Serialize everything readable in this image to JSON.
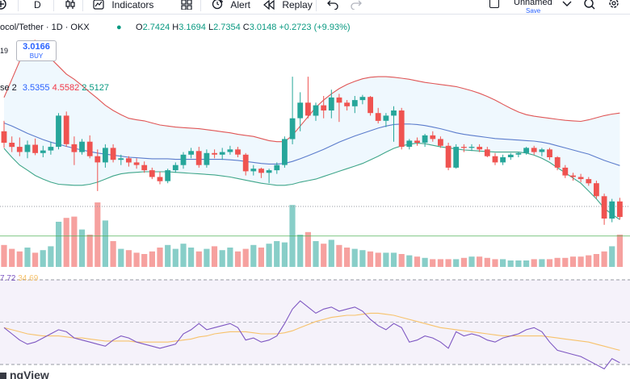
{
  "toolbar": {
    "interval": "D",
    "indicators_label": "Indicators",
    "alert_label": "Alert",
    "replay_label": "Replay",
    "layout_name": "Unnamed",
    "save_label": "Save"
  },
  "legend": {
    "symbol": "ocol/Tether · 1D · OKX",
    "ohlc": {
      "o_label": "O",
      "o": "2.7424",
      "h_label": "H",
      "h": "3.1694",
      "l_label": "L",
      "l": "2.7354",
      "c_label": "C",
      "c": "3.0148",
      "change": "+0.2723 (+9.93%)"
    },
    "left_cut": "19",
    "bb_label": "se 2",
    "bb_values": {
      "basis": "3.5355",
      "upper": "4.5582",
      "lower": "2.5127"
    },
    "buy_price": "3.0166",
    "buy_label": "BUY",
    "rsi_values": {
      "rsi": "7.72",
      "ma": "34.69"
    },
    "watermark": "ngView"
  },
  "colors": {
    "up": "#26a69a",
    "down": "#ef5350",
    "upper": "#e05656",
    "basis": "#5b7ccc",
    "lower": "#3fa68a",
    "rsi": "#7e57c2",
    "rsi_ma": "#f7c26b"
  },
  "chart_data": {
    "type": "candlestick",
    "symbol": "ocol/Tether",
    "timeframe": "1D",
    "exchange": "OKX",
    "candles": [
      [
        3.7,
        3.9,
        3.38,
        3.48
      ],
      [
        3.48,
        3.6,
        3.3,
        3.4
      ],
      [
        3.4,
        3.58,
        3.22,
        3.3
      ],
      [
        3.3,
        3.52,
        3.18,
        3.44
      ],
      [
        3.44,
        3.56,
        3.24,
        3.28
      ],
      [
        3.28,
        3.42,
        3.2,
        3.33
      ],
      [
        3.33,
        3.5,
        3.25,
        3.4
      ],
      [
        3.4,
        4.05,
        3.35,
        4.0
      ],
      [
        4.0,
        4.08,
        3.4,
        3.45
      ],
      [
        3.45,
        3.6,
        3.05,
        3.3
      ],
      [
        3.3,
        3.55,
        3.25,
        3.5
      ],
      [
        3.5,
        3.62,
        3.18,
        3.22
      ],
      [
        3.22,
        3.35,
        2.55,
        3.1
      ],
      [
        3.1,
        3.45,
        3.0,
        3.38
      ],
      [
        3.38,
        3.45,
        3.1,
        3.15
      ],
      [
        3.15,
        3.25,
        3.05,
        3.18
      ],
      [
        3.18,
        3.22,
        3.02,
        3.1
      ],
      [
        3.1,
        3.18,
        2.98,
        3.05
      ],
      [
        3.05,
        3.12,
        2.9,
        2.95
      ],
      [
        2.95,
        3.0,
        2.78,
        2.82
      ],
      [
        2.82,
        2.92,
        2.68,
        2.74
      ],
      [
        2.74,
        2.98,
        2.7,
        2.95
      ],
      [
        2.95,
        3.1,
        2.9,
        3.05
      ],
      [
        3.05,
        3.3,
        2.98,
        3.25
      ],
      [
        3.25,
        3.38,
        3.18,
        3.32
      ],
      [
        3.32,
        3.4,
        3.0,
        3.05
      ],
      [
        3.05,
        3.35,
        3.0,
        3.28
      ],
      [
        3.28,
        3.35,
        3.18,
        3.25
      ],
      [
        3.25,
        3.38,
        3.15,
        3.3
      ],
      [
        3.3,
        3.42,
        3.25,
        3.35
      ],
      [
        3.35,
        3.4,
        3.2,
        3.25
      ],
      [
        3.25,
        3.28,
        2.85,
        2.93
      ],
      [
        2.93,
        3.05,
        2.85,
        2.98
      ],
      [
        2.98,
        3.0,
        2.8,
        2.9
      ],
      [
        2.9,
        2.98,
        2.7,
        2.95
      ],
      [
        2.95,
        3.1,
        2.88,
        3.05
      ],
      [
        3.05,
        3.6,
        3.0,
        3.55
      ],
      [
        3.55,
        4.75,
        3.45,
        3.95
      ],
      [
        3.95,
        4.45,
        3.7,
        4.25
      ],
      [
        4.25,
        4.75,
        3.95,
        4.0
      ],
      [
        4.0,
        4.25,
        3.9,
        4.2
      ],
      [
        4.2,
        4.38,
        3.95,
        4.1
      ],
      [
        4.1,
        4.5,
        3.95,
        4.35
      ],
      [
        4.35,
        4.42,
        3.88,
        4.25
      ],
      [
        4.25,
        4.3,
        4.1,
        4.18
      ],
      [
        4.18,
        4.38,
        4.05,
        4.3
      ],
      [
        4.3,
        4.4,
        4.22,
        4.36
      ],
      [
        4.36,
        4.38,
        4.0,
        4.05
      ],
      [
        4.05,
        4.15,
        3.85,
        3.9
      ],
      [
        3.9,
        4.05,
        3.78,
        4.0
      ],
      [
        4.0,
        4.18,
        3.5,
        4.1
      ],
      [
        4.1,
        4.15,
        3.35,
        3.4
      ],
      [
        3.4,
        3.55,
        3.35,
        3.52
      ],
      [
        3.52,
        3.58,
        3.42,
        3.48
      ],
      [
        3.48,
        3.65,
        3.4,
        3.62
      ],
      [
        3.62,
        3.7,
        3.5,
        3.55
      ],
      [
        3.55,
        3.6,
        3.38,
        3.42
      ],
      [
        3.42,
        3.48,
        2.95,
        3.0
      ],
      [
        3.0,
        3.45,
        2.98,
        3.4
      ],
      [
        3.4,
        3.45,
        3.3,
        3.38
      ],
      [
        3.38,
        3.45,
        3.32,
        3.4
      ],
      [
        3.4,
        3.45,
        3.3,
        3.35
      ],
      [
        3.35,
        3.4,
        3.2,
        3.22
      ],
      [
        3.22,
        3.28,
        3.05,
        3.1
      ],
      [
        3.1,
        3.25,
        3.05,
        3.2
      ],
      [
        3.2,
        3.28,
        3.15,
        3.25
      ],
      [
        3.25,
        3.3,
        3.2,
        3.28
      ],
      [
        3.28,
        3.4,
        3.25,
        3.38
      ],
      [
        3.38,
        3.42,
        3.25,
        3.3
      ],
      [
        3.3,
        3.38,
        3.22,
        3.35
      ],
      [
        3.35,
        3.38,
        3.15,
        3.2
      ],
      [
        3.2,
        3.22,
        2.95,
        3.0
      ],
      [
        3.0,
        3.05,
        2.8,
        2.85
      ],
      [
        2.85,
        2.9,
        2.75,
        2.82
      ],
      [
        2.82,
        2.88,
        2.72,
        2.78
      ],
      [
        2.78,
        2.82,
        2.65,
        2.7
      ],
      [
        2.7,
        2.75,
        2.4,
        2.45
      ],
      [
        2.45,
        2.5,
        1.9,
        2.02
      ],
      [
        2.02,
        2.4,
        1.95,
        2.35
      ],
      [
        2.35,
        2.42,
        2.0,
        2.05
      ]
    ],
    "bb_upper": [
      4.35,
      4.7,
      5.05,
      5.4,
      5.45,
      5.3,
      5.1,
      4.95,
      4.8,
      4.7,
      4.58,
      4.45,
      4.33,
      4.2,
      4.1,
      4.02,
      3.95,
      3.92,
      3.9,
      3.86,
      3.82,
      3.8,
      3.78,
      3.77,
      3.76,
      3.75,
      3.73,
      3.71,
      3.69,
      3.67,
      3.64,
      3.62,
      3.6,
      3.56,
      3.52,
      3.5,
      3.5,
      3.62,
      3.8,
      3.98,
      4.16,
      4.3,
      4.42,
      4.52,
      4.6,
      4.66,
      4.71,
      4.74,
      4.75,
      4.75,
      4.74,
      4.72,
      4.7,
      4.67,
      4.64,
      4.62,
      4.6,
      4.58,
      4.56,
      4.52,
      4.48,
      4.43,
      4.37,
      4.3,
      4.22,
      4.14,
      4.07,
      4.02,
      3.99,
      3.97,
      3.95,
      3.93,
      3.91,
      3.9,
      3.89,
      3.92,
      3.96,
      4.0,
      4.03,
      4.05
    ],
    "bb_basis": [
      3.86,
      3.8,
      3.73,
      3.66,
      3.6,
      3.54,
      3.49,
      3.45,
      3.41,
      3.37,
      3.34,
      3.31,
      3.28,
      3.26,
      3.24,
      3.22,
      3.2,
      3.19,
      3.18,
      3.17,
      3.17,
      3.17,
      3.16,
      3.16,
      3.16,
      3.16,
      3.16,
      3.16,
      3.16,
      3.15,
      3.14,
      3.12,
      3.1,
      3.08,
      3.07,
      3.07,
      3.08,
      3.12,
      3.17,
      3.23,
      3.29,
      3.35,
      3.42,
      3.49,
      3.55,
      3.61,
      3.66,
      3.71,
      3.76,
      3.8,
      3.83,
      3.84,
      3.84,
      3.83,
      3.81,
      3.78,
      3.75,
      3.71,
      3.67,
      3.64,
      3.62,
      3.6,
      3.58,
      3.56,
      3.55,
      3.54,
      3.53,
      3.52,
      3.51,
      3.49,
      3.46,
      3.42,
      3.38,
      3.34,
      3.3,
      3.26,
      3.2,
      3.14,
      3.09,
      3.04
    ],
    "bb_lower": [
      3.37,
      3.2,
      3.05,
      2.95,
      2.85,
      2.78,
      2.72,
      2.68,
      2.67,
      2.66,
      2.66,
      2.68,
      2.72,
      2.78,
      2.84,
      2.88,
      2.9,
      2.91,
      2.92,
      2.92,
      2.92,
      2.92,
      2.91,
      2.9,
      2.89,
      2.88,
      2.87,
      2.86,
      2.84,
      2.82,
      2.79,
      2.76,
      2.73,
      2.7,
      2.68,
      2.66,
      2.66,
      2.68,
      2.72,
      2.75,
      2.78,
      2.83,
      2.88,
      2.93,
      2.98,
      3.03,
      3.08,
      3.15,
      3.22,
      3.3,
      3.37,
      3.42,
      3.45,
      3.47,
      3.46,
      3.43,
      3.4,
      3.38,
      3.36,
      3.34,
      3.33,
      3.32,
      3.31,
      3.3,
      3.3,
      3.3,
      3.3,
      3.28,
      3.24,
      3.18,
      3.1,
      3.0,
      2.9,
      2.8,
      2.7,
      2.55,
      2.4,
      2.22,
      2.1,
      2.0
    ],
    "volume": [
      34,
      28,
      24,
      30,
      22,
      26,
      32,
      70,
      76,
      78,
      58,
      50,
      100,
      72,
      40,
      28,
      26,
      22,
      20,
      24,
      30,
      34,
      28,
      36,
      30,
      24,
      28,
      32,
      26,
      30,
      24,
      28,
      34,
      30,
      36,
      40,
      38,
      96,
      50,
      54,
      40,
      36,
      42,
      34,
      30,
      28,
      26,
      24,
      22,
      22,
      22,
      20,
      18,
      16,
      14,
      12,
      12,
      12,
      12,
      14,
      16,
      16,
      14,
      12,
      12,
      10,
      10,
      10,
      12,
      12,
      12,
      14,
      14,
      16,
      16,
      18,
      20,
      24,
      32,
      50
    ],
    "volume_avg": 48,
    "rsi": [
      42,
      36,
      30,
      26,
      28,
      32,
      36,
      40,
      38,
      32,
      30,
      28,
      26,
      24,
      30,
      34,
      32,
      28,
      26,
      24,
      22,
      24,
      26,
      36,
      40,
      46,
      40,
      42,
      44,
      46,
      42,
      30,
      32,
      28,
      30,
      34,
      46,
      60,
      68,
      62,
      56,
      60,
      62,
      58,
      60,
      62,
      58,
      50,
      44,
      40,
      46,
      42,
      28,
      30,
      34,
      32,
      28,
      22,
      38,
      34,
      36,
      34,
      30,
      28,
      32,
      34,
      36,
      40,
      42,
      38,
      28,
      20,
      18,
      16,
      14,
      10,
      6,
      2,
      12,
      8
    ],
    "rsi_ma": [
      42,
      40,
      38,
      36,
      35,
      34,
      34,
      34,
      33,
      32,
      32,
      31,
      30,
      29,
      29,
      29,
      29,
      28,
      28,
      28,
      28,
      28,
      29,
      30,
      31,
      33,
      34,
      36,
      37,
      38,
      38,
      38,
      37,
      36,
      36,
      36,
      37,
      39,
      42,
      45,
      48,
      50,
      52,
      53,
      54,
      54,
      55,
      56,
      56,
      55,
      54,
      52,
      50,
      48,
      46,
      44,
      42,
      41,
      40,
      39,
      38,
      37,
      36,
      35,
      34,
      34,
      34,
      34,
      34,
      34,
      33,
      32,
      31,
      30,
      29,
      28,
      26,
      24,
      22,
      20
    ],
    "ylim": [
      1.85,
      5.45
    ],
    "rsi_ylim": [
      0,
      90
    ],
    "legend_position": "top-left"
  }
}
